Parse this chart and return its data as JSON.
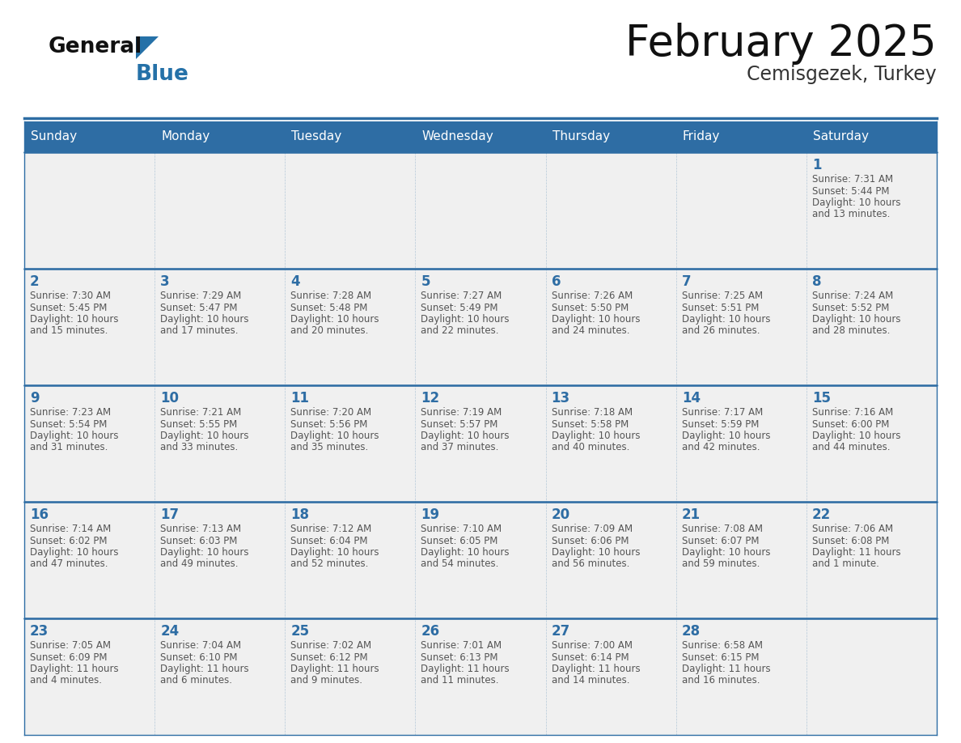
{
  "title": "February 2025",
  "subtitle": "Cemisgezek, Turkey",
  "days_of_week": [
    "Sunday",
    "Monday",
    "Tuesday",
    "Wednesday",
    "Thursday",
    "Friday",
    "Saturday"
  ],
  "header_bg": "#2E6DA4",
  "header_text": "#FFFFFF",
  "cell_bg": "#F0F0F0",
  "border_color": "#2E6DA4",
  "day_number_color": "#2E6DA4",
  "text_color": "#555555",
  "title_color": "#111111",
  "subtitle_color": "#333333",
  "logo_general_color": "#111111",
  "logo_blue_color": "#2571A8",
  "calendar": [
    [
      null,
      null,
      null,
      null,
      null,
      null,
      1
    ],
    [
      2,
      3,
      4,
      5,
      6,
      7,
      8
    ],
    [
      9,
      10,
      11,
      12,
      13,
      14,
      15
    ],
    [
      16,
      17,
      18,
      19,
      20,
      21,
      22
    ],
    [
      23,
      24,
      25,
      26,
      27,
      28,
      null
    ]
  ],
  "cell_data": {
    "1": {
      "sunrise": "7:31 AM",
      "sunset": "5:44 PM",
      "daylight": "10 hours\nand 13 minutes."
    },
    "2": {
      "sunrise": "7:30 AM",
      "sunset": "5:45 PM",
      "daylight": "10 hours\nand 15 minutes."
    },
    "3": {
      "sunrise": "7:29 AM",
      "sunset": "5:47 PM",
      "daylight": "10 hours\nand 17 minutes."
    },
    "4": {
      "sunrise": "7:28 AM",
      "sunset": "5:48 PM",
      "daylight": "10 hours\nand 20 minutes."
    },
    "5": {
      "sunrise": "7:27 AM",
      "sunset": "5:49 PM",
      "daylight": "10 hours\nand 22 minutes."
    },
    "6": {
      "sunrise": "7:26 AM",
      "sunset": "5:50 PM",
      "daylight": "10 hours\nand 24 minutes."
    },
    "7": {
      "sunrise": "7:25 AM",
      "sunset": "5:51 PM",
      "daylight": "10 hours\nand 26 minutes."
    },
    "8": {
      "sunrise": "7:24 AM",
      "sunset": "5:52 PM",
      "daylight": "10 hours\nand 28 minutes."
    },
    "9": {
      "sunrise": "7:23 AM",
      "sunset": "5:54 PM",
      "daylight": "10 hours\nand 31 minutes."
    },
    "10": {
      "sunrise": "7:21 AM",
      "sunset": "5:55 PM",
      "daylight": "10 hours\nand 33 minutes."
    },
    "11": {
      "sunrise": "7:20 AM",
      "sunset": "5:56 PM",
      "daylight": "10 hours\nand 35 minutes."
    },
    "12": {
      "sunrise": "7:19 AM",
      "sunset": "5:57 PM",
      "daylight": "10 hours\nand 37 minutes."
    },
    "13": {
      "sunrise": "7:18 AM",
      "sunset": "5:58 PM",
      "daylight": "10 hours\nand 40 minutes."
    },
    "14": {
      "sunrise": "7:17 AM",
      "sunset": "5:59 PM",
      "daylight": "10 hours\nand 42 minutes."
    },
    "15": {
      "sunrise": "7:16 AM",
      "sunset": "6:00 PM",
      "daylight": "10 hours\nand 44 minutes."
    },
    "16": {
      "sunrise": "7:14 AM",
      "sunset": "6:02 PM",
      "daylight": "10 hours\nand 47 minutes."
    },
    "17": {
      "sunrise": "7:13 AM",
      "sunset": "6:03 PM",
      "daylight": "10 hours\nand 49 minutes."
    },
    "18": {
      "sunrise": "7:12 AM",
      "sunset": "6:04 PM",
      "daylight": "10 hours\nand 52 minutes."
    },
    "19": {
      "sunrise": "7:10 AM",
      "sunset": "6:05 PM",
      "daylight": "10 hours\nand 54 minutes."
    },
    "20": {
      "sunrise": "7:09 AM",
      "sunset": "6:06 PM",
      "daylight": "10 hours\nand 56 minutes."
    },
    "21": {
      "sunrise": "7:08 AM",
      "sunset": "6:07 PM",
      "daylight": "10 hours\nand 59 minutes."
    },
    "22": {
      "sunrise": "7:06 AM",
      "sunset": "6:08 PM",
      "daylight": "11 hours\nand 1 minute."
    },
    "23": {
      "sunrise": "7:05 AM",
      "sunset": "6:09 PM",
      "daylight": "11 hours\nand 4 minutes."
    },
    "24": {
      "sunrise": "7:04 AM",
      "sunset": "6:10 PM",
      "daylight": "11 hours\nand 6 minutes."
    },
    "25": {
      "sunrise": "7:02 AM",
      "sunset": "6:12 PM",
      "daylight": "11 hours\nand 9 minutes."
    },
    "26": {
      "sunrise": "7:01 AM",
      "sunset": "6:13 PM",
      "daylight": "11 hours\nand 11 minutes."
    },
    "27": {
      "sunrise": "7:00 AM",
      "sunset": "6:14 PM",
      "daylight": "11 hours\nand 14 minutes."
    },
    "28": {
      "sunrise": "6:58 AM",
      "sunset": "6:15 PM",
      "daylight": "11 hours\nand 16 minutes."
    }
  }
}
